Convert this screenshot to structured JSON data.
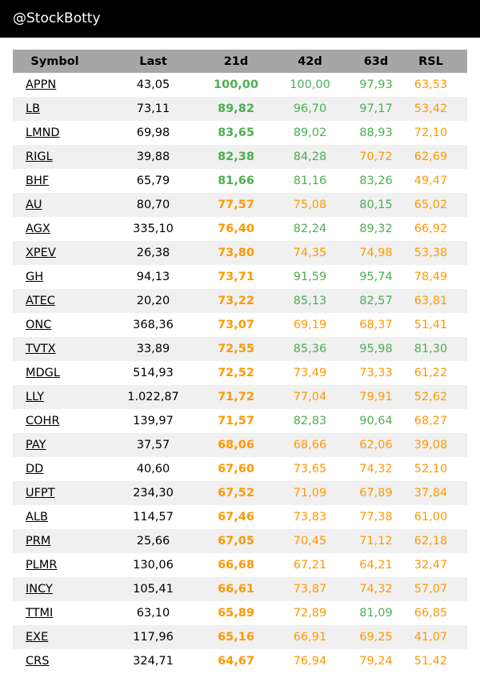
{
  "header": {
    "handle": "@StockBotty"
  },
  "colors": {
    "green": "#4caf50",
    "orange": "#ff9800"
  },
  "table": {
    "columns": [
      "Symbol",
      "Last",
      "21d",
      "42d",
      "63d",
      "RSL"
    ],
    "rows": [
      {
        "symbol": "APPN",
        "last": "43,05",
        "d21": "100,00",
        "d42": "100,00",
        "d63": "97,93",
        "rsl": "63,53",
        "c21": "g",
        "c42": "g",
        "c63": "g",
        "crsl": "o"
      },
      {
        "symbol": "LB",
        "last": "73,11",
        "d21": "89,82",
        "d42": "96,70",
        "d63": "97,17",
        "rsl": "53,42",
        "c21": "g",
        "c42": "g",
        "c63": "g",
        "crsl": "o"
      },
      {
        "symbol": "LMND",
        "last": "69,98",
        "d21": "83,65",
        "d42": "89,02",
        "d63": "88,93",
        "rsl": "72,10",
        "c21": "g",
        "c42": "g",
        "c63": "g",
        "crsl": "o"
      },
      {
        "symbol": "RIGL",
        "last": "39,88",
        "d21": "82,38",
        "d42": "84,28",
        "d63": "70,72",
        "rsl": "62,69",
        "c21": "g",
        "c42": "g",
        "c63": "o",
        "crsl": "o"
      },
      {
        "symbol": "BHF",
        "last": "65,79",
        "d21": "81,66",
        "d42": "81,16",
        "d63": "83,26",
        "rsl": "49,47",
        "c21": "g",
        "c42": "g",
        "c63": "g",
        "crsl": "o"
      },
      {
        "symbol": "AU",
        "last": "80,70",
        "d21": "77,57",
        "d42": "75,08",
        "d63": "80,15",
        "rsl": "65,02",
        "c21": "o",
        "c42": "o",
        "c63": "g",
        "crsl": "o"
      },
      {
        "symbol": "AGX",
        "last": "335,10",
        "d21": "76,40",
        "d42": "82,24",
        "d63": "89,32",
        "rsl": "66,92",
        "c21": "o",
        "c42": "g",
        "c63": "g",
        "crsl": "o"
      },
      {
        "symbol": "XPEV",
        "last": "26,38",
        "d21": "73,80",
        "d42": "74,35",
        "d63": "74,98",
        "rsl": "53,38",
        "c21": "o",
        "c42": "o",
        "c63": "o",
        "crsl": "o"
      },
      {
        "symbol": "GH",
        "last": "94,13",
        "d21": "73,71",
        "d42": "91,59",
        "d63": "95,74",
        "rsl": "78,49",
        "c21": "o",
        "c42": "g",
        "c63": "g",
        "crsl": "o"
      },
      {
        "symbol": "ATEC",
        "last": "20,20",
        "d21": "73,22",
        "d42": "85,13",
        "d63": "82,57",
        "rsl": "63,81",
        "c21": "o",
        "c42": "g",
        "c63": "g",
        "crsl": "o"
      },
      {
        "symbol": "ONC",
        "last": "368,36",
        "d21": "73,07",
        "d42": "69,19",
        "d63": "68,37",
        "rsl": "51,41",
        "c21": "o",
        "c42": "o",
        "c63": "o",
        "crsl": "o"
      },
      {
        "symbol": "TVTX",
        "last": "33,89",
        "d21": "72,55",
        "d42": "85,36",
        "d63": "95,98",
        "rsl": "81,30",
        "c21": "o",
        "c42": "g",
        "c63": "g",
        "crsl": "g"
      },
      {
        "symbol": "MDGL",
        "last": "514,93",
        "d21": "72,52",
        "d42": "73,49",
        "d63": "73,33",
        "rsl": "61,22",
        "c21": "o",
        "c42": "o",
        "c63": "o",
        "crsl": "o"
      },
      {
        "symbol": "LLY",
        "last": "1.022,87",
        "d21": "71,72",
        "d42": "77,04",
        "d63": "79,91",
        "rsl": "52,62",
        "c21": "o",
        "c42": "o",
        "c63": "o",
        "crsl": "o"
      },
      {
        "symbol": "COHR",
        "last": "139,97",
        "d21": "71,57",
        "d42": "82,83",
        "d63": "90,64",
        "rsl": "68,27",
        "c21": "o",
        "c42": "g",
        "c63": "g",
        "crsl": "o"
      },
      {
        "symbol": "PAY",
        "last": "37,57",
        "d21": "68,06",
        "d42": "68,66",
        "d63": "62,06",
        "rsl": "39,08",
        "c21": "o",
        "c42": "o",
        "c63": "o",
        "crsl": "o"
      },
      {
        "symbol": "DD",
        "last": "40,60",
        "d21": "67,60",
        "d42": "73,65",
        "d63": "74,32",
        "rsl": "52,10",
        "c21": "o",
        "c42": "o",
        "c63": "o",
        "crsl": "o"
      },
      {
        "symbol": "UFPT",
        "last": "234,30",
        "d21": "67,52",
        "d42": "71,09",
        "d63": "67,89",
        "rsl": "37,84",
        "c21": "o",
        "c42": "o",
        "c63": "o",
        "crsl": "o"
      },
      {
        "symbol": "ALB",
        "last": "114,57",
        "d21": "67,46",
        "d42": "73,83",
        "d63": "77,38",
        "rsl": "61,00",
        "c21": "o",
        "c42": "o",
        "c63": "o",
        "crsl": "o"
      },
      {
        "symbol": "PRM",
        "last": "25,66",
        "d21": "67,05",
        "d42": "70,45",
        "d63": "71,12",
        "rsl": "62,18",
        "c21": "o",
        "c42": "o",
        "c63": "o",
        "crsl": "o"
      },
      {
        "symbol": "PLMR",
        "last": "130,06",
        "d21": "66,68",
        "d42": "67,21",
        "d63": "64,21",
        "rsl": "32,47",
        "c21": "o",
        "c42": "o",
        "c63": "o",
        "crsl": "o"
      },
      {
        "symbol": "INCY",
        "last": "105,41",
        "d21": "66,61",
        "d42": "73,87",
        "d63": "74,32",
        "rsl": "57,07",
        "c21": "o",
        "c42": "o",
        "c63": "o",
        "crsl": "o"
      },
      {
        "symbol": "TTMI",
        "last": "63,10",
        "d21": "65,89",
        "d42": "72,89",
        "d63": "81,09",
        "rsl": "66,85",
        "c21": "o",
        "c42": "o",
        "c63": "g",
        "crsl": "o"
      },
      {
        "symbol": "EXE",
        "last": "117,96",
        "d21": "65,16",
        "d42": "66,91",
        "d63": "69,25",
        "rsl": "41,07",
        "c21": "o",
        "c42": "o",
        "c63": "o",
        "crsl": "o"
      },
      {
        "symbol": "CRS",
        "last": "324,71",
        "d21": "64,67",
        "d42": "76,94",
        "d63": "79,24",
        "rsl": "51,42",
        "c21": "o",
        "c42": "o",
        "c63": "o",
        "crsl": "o"
      }
    ]
  }
}
